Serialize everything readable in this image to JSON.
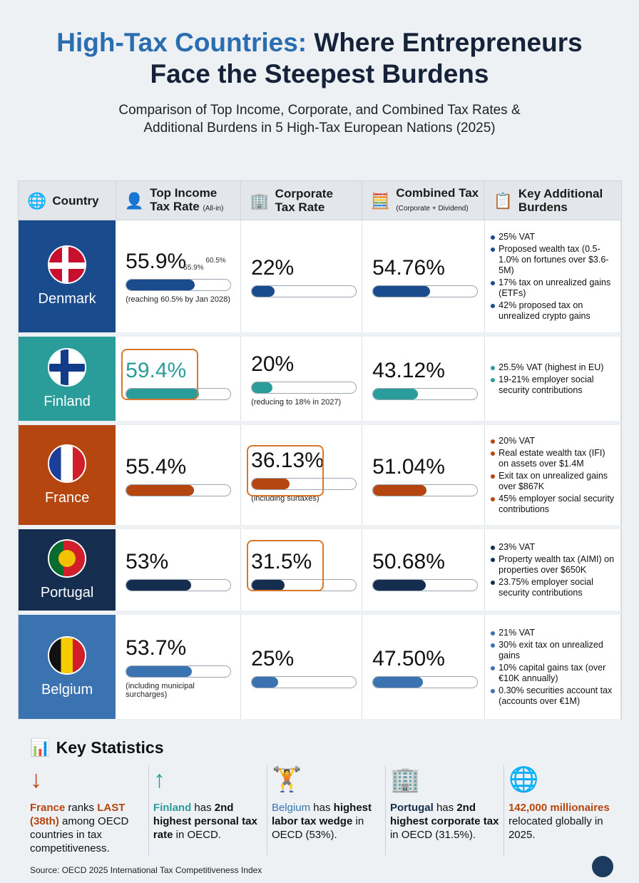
{
  "title": {
    "accent": "High-Tax Countries:",
    "rest": " Where Entrepreneurs",
    "line2": "Face the Steepest Burdens"
  },
  "subtitle": {
    "line1": "Comparison of Top Income, Corporate, and Combined Tax Rates &",
    "line2": "Additional Burdens in 5 High-Tax European Nations (2025)"
  },
  "headers": [
    {
      "label": "Country",
      "small": "",
      "icon": "globe-icon"
    },
    {
      "label": "Top Income",
      "label2": "Tax Rate",
      "small": "(All-in)",
      "icon": "person-wallet-icon"
    },
    {
      "label": "Corporate",
      "label2": "Tax Rate",
      "small": "",
      "icon": "building-icon"
    },
    {
      "label": "Combined Tax",
      "small": "(Corporate + Dividend)",
      "icon": "calculator-icon"
    },
    {
      "label": "Key Additional",
      "label2": "Burdens",
      "small": "",
      "icon": "checklist-icon"
    }
  ],
  "chart_data": {
    "type": "table",
    "columns": [
      "Country",
      "Top Income Tax Rate (All-in)",
      "Corporate Tax Rate",
      "Combined Tax (Corporate + Dividend)",
      "Key Additional Burdens"
    ],
    "rows": [
      {
        "country": "Denmark",
        "color": "#1a4b8c",
        "income": 55.9,
        "income_label": "55.9%",
        "income_note": "(reaching 60.5% by Jan 2028)",
        "income_marker": {
          "current": "55.9%",
          "future": "60.5%"
        },
        "corporate": 22,
        "corporate_label": "22%",
        "corporate_note": "",
        "combined": 54.76,
        "combined_label": "54.76%",
        "highlight": "",
        "burdens": [
          "25% VAT",
          "Proposed wealth tax (0.5-1.0% on fortunes over $3.6-5M)",
          "17% tax on unrealized gains (ETFs)",
          "42% proposed tax on unrealized crypto gains"
        ]
      },
      {
        "country": "Finland",
        "color": "#2a9d9a",
        "income": 59.4,
        "income_label": "59.4%",
        "income_note": "",
        "corporate": 20,
        "corporate_label": "20%",
        "corporate_note": "(reducing to 18% in 2027)",
        "combined": 43.12,
        "combined_label": "43.12%",
        "highlight": "income",
        "burdens": [
          "25.5% VAT (highest in EU)",
          "19-21% employer social security contributions"
        ]
      },
      {
        "country": "France",
        "color": "#b5460f",
        "income": 55.4,
        "income_label": "55.4%",
        "income_note": "",
        "corporate": 36.13,
        "corporate_label": "36.13%",
        "corporate_note": "(including surtaxes)",
        "combined": 51.04,
        "combined_label": "51.04%",
        "highlight": "corporate",
        "burdens": [
          "20% VAT",
          "Real estate wealth tax (IFI) on assets over $1.4M",
          "Exit tax on unrealized gains over $867K",
          "45% employer social security contributions"
        ]
      },
      {
        "country": "Portugal",
        "color": "#152e4f",
        "income": 53,
        "income_label": "53%",
        "income_note": "",
        "corporate": 31.5,
        "corporate_label": "31.5%",
        "corporate_note": "",
        "combined": 50.68,
        "combined_label": "50.68%",
        "highlight": "corporate",
        "burdens": [
          "23% VAT",
          "Property wealth tax (AIMI) on properties over $650K",
          "23.75% employer social security contributions"
        ]
      },
      {
        "country": "Belgium",
        "color": "#3b72b0",
        "income": 53.7,
        "income_label": "53.7%",
        "income_note": "(including municipal surcharges)",
        "corporate": 25,
        "corporate_label": "25%",
        "corporate_note": "",
        "combined": 47.5,
        "combined_label": "47.50%",
        "highlight": "",
        "burdens": [
          "21% VAT",
          "30% exit tax on unrealized gains",
          "10% capital gains tax (over €10K annually)",
          "0.30% securities account tax (accounts over €1M)"
        ]
      }
    ]
  },
  "highlight_color": "#d9772b",
  "key_stats": {
    "title": "Key Statistics",
    "items": [
      {
        "icon": "arrow-down-icon",
        "glyph": "↓",
        "color": "#b5460f",
        "parts": [
          {
            "t": "France",
            "c": "#b5460f",
            "b": true
          },
          {
            "t": " ranks "
          },
          {
            "t": "LAST (38th)",
            "c": "#b5460f",
            "b": true
          },
          {
            "t": " among OECD countries in tax competitiveness."
          }
        ]
      },
      {
        "icon": "arrow-up-icon",
        "glyph": "↑",
        "color": "#2a9d9a",
        "parts": [
          {
            "t": "Finland",
            "c": "#2a9d9a",
            "b": true
          },
          {
            "t": " has "
          },
          {
            "t": "2nd highest personal tax rate",
            "b": true
          },
          {
            "t": " in OECD."
          }
        ]
      },
      {
        "icon": "weightlifter-icon",
        "glyph": "🏋",
        "color": "#3b72b0",
        "parts": [
          {
            "t": "Belgium",
            "c": "#3b72b0"
          },
          {
            "t": " has "
          },
          {
            "t": "highest labor tax wedge",
            "b": true
          },
          {
            "t": " in OECD (53%)."
          }
        ]
      },
      {
        "icon": "building-up-icon",
        "glyph": "🏢",
        "color": "#152e4f",
        "parts": [
          {
            "t": "Portugal",
            "c": "#152e4f",
            "b": true
          },
          {
            "t": " has "
          },
          {
            "t": "2nd highest corporate tax",
            "b": true
          },
          {
            "t": " in OECD (31.5%)."
          }
        ]
      },
      {
        "icon": "globe-trend-icon",
        "glyph": "🌐",
        "color": "#b5460f",
        "parts": [
          {
            "t": "142,000 millionaires",
            "c": "#b5460f",
            "b": true
          },
          {
            "t": " relocated globally in 2025."
          }
        ]
      }
    ]
  },
  "source": "Source: OECD 2025 International Tax Competitiveness Index"
}
